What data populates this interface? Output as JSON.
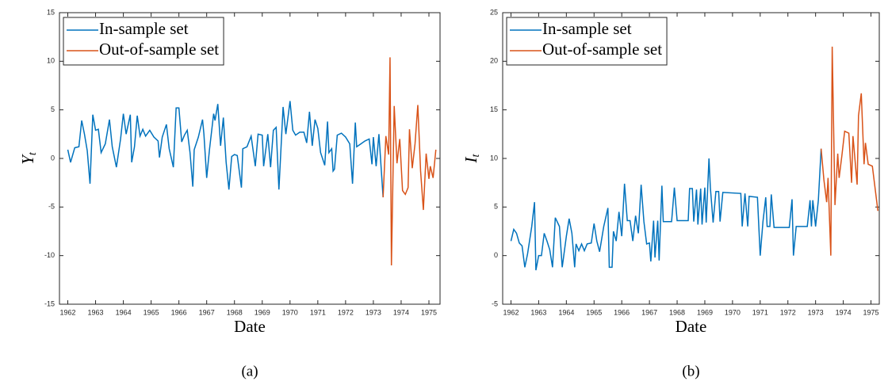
{
  "chart_data": [
    {
      "type": "line",
      "caption": "(a)",
      "x_label": "Date",
      "y_label": "Y",
      "y_label_subscript": "t",
      "xlim": [
        1961.7,
        1975.4
      ],
      "xticks": [
        1962,
        1963,
        1964,
        1965,
        1966,
        1967,
        1968,
        1969,
        1970,
        1971,
        1972,
        1973,
        1974,
        1975
      ],
      "ylim": [
        -15,
        15
      ],
      "yticks": [
        -15,
        -10,
        -5,
        0,
        5,
        10,
        15
      ],
      "legend": "upper left",
      "series": [
        {
          "name": "In-sample set",
          "color": "#0072bd",
          "x": [
            1962.0,
            1962.1,
            1962.25,
            1962.4,
            1962.5,
            1962.6,
            1962.7,
            1962.8,
            1962.9,
            1963.0,
            1963.1,
            1963.2,
            1963.35,
            1963.5,
            1963.6,
            1963.75,
            1963.9,
            1964.0,
            1964.1,
            1964.25,
            1964.3,
            1964.4,
            1964.5,
            1964.6,
            1964.7,
            1964.8,
            1964.95,
            1965.1,
            1965.25,
            1965.3,
            1965.4,
            1965.55,
            1965.65,
            1965.8,
            1965.9,
            1966.0,
            1966.1,
            1966.2,
            1966.3,
            1966.4,
            1966.5,
            1966.55,
            1966.7,
            1966.85,
            1966.9,
            1967.0,
            1967.1,
            1967.25,
            1967.3,
            1967.4,
            1967.5,
            1967.6,
            1967.7,
            1967.8,
            1967.9,
            1968.0,
            1968.1,
            1968.25,
            1968.3,
            1968.45,
            1968.6,
            1968.75,
            1968.85,
            1969.0,
            1969.05,
            1969.2,
            1969.3,
            1969.4,
            1969.5,
            1969.6,
            1969.75,
            1969.85,
            1970.0,
            1970.1,
            1970.2,
            1970.35,
            1970.5,
            1970.6,
            1970.7,
            1970.8,
            1970.9,
            1971.0,
            1971.1,
            1971.25,
            1971.35,
            1971.4,
            1971.5,
            1971.55,
            1971.6,
            1971.7,
            1971.85,
            1972.0,
            1972.15,
            1972.25,
            1972.35,
            1972.4,
            1972.55,
            1972.7,
            1972.85,
            1972.95,
            1973.0,
            1973.1,
            1973.2,
            1973.35
          ],
          "values": [
            0.9,
            -0.4,
            1.1,
            1.2,
            3.9,
            2.5,
            0.8,
            -2.6,
            4.5,
            2.9,
            3.0,
            0.6,
            1.5,
            4.0,
            1.2,
            -0.9,
            2.0,
            4.6,
            2.5,
            4.5,
            -0.4,
            1.2,
            4.4,
            2.3,
            3.0,
            2.3,
            2.9,
            2.2,
            1.8,
            0.1,
            2.2,
            3.5,
            1.0,
            -0.9,
            5.2,
            5.2,
            1.7,
            2.4,
            2.9,
            0.6,
            -2.9,
            0.9,
            2.2,
            4.0,
            2.5,
            -2.0,
            0.9,
            4.6,
            3.9,
            5.6,
            1.3,
            4.2,
            -0.4,
            -3.2,
            0.2,
            0.4,
            0.3,
            -3.0,
            1.0,
            1.2,
            2.3,
            -0.8,
            2.5,
            2.4,
            -0.8,
            2.5,
            -0.9,
            2.9,
            3.2,
            -3.2,
            5.3,
            2.5,
            5.9,
            2.9,
            2.4,
            2.7,
            2.7,
            1.6,
            4.8,
            1.3,
            4.0,
            3.1,
            0.6,
            -0.7,
            3.8,
            0.6,
            1.0,
            -1.3,
            -1.1,
            2.4,
            2.6,
            2.2,
            1.5,
            -2.6,
            3.7,
            1.2,
            1.5,
            1.8,
            2.0,
            -0.6,
            2.2,
            -0.8,
            2.5,
            -4.0
          ]
        },
        {
          "name": "Out-of-sample set",
          "color": "#d95319",
          "x": [
            1973.35,
            1973.45,
            1973.55,
            1973.6,
            1973.65,
            1973.75,
            1973.85,
            1973.95,
            1974.05,
            1974.15,
            1974.25,
            1974.3,
            1974.4,
            1974.5,
            1974.6,
            1974.7,
            1974.8,
            1974.9,
            1975.0,
            1975.05,
            1975.15,
            1975.25
          ],
          "values": [
            -4.0,
            2.3,
            0.4,
            10.4,
            -11.0,
            5.4,
            -0.5,
            2.0,
            -3.3,
            -3.7,
            -3.0,
            3.0,
            -1.0,
            1.5,
            5.5,
            -1.3,
            -5.3,
            0.5,
            -2.1,
            -0.8,
            -2.0,
            0.9
          ]
        }
      ]
    },
    {
      "type": "line",
      "caption": "(b)",
      "x_label": "Date",
      "y_label": "I",
      "y_label_subscript": "t",
      "xlim": [
        1961.7,
        1975.3
      ],
      "xticks": [
        1962,
        1963,
        1964,
        1965,
        1966,
        1967,
        1968,
        1969,
        1970,
        1971,
        1972,
        1973,
        1974,
        1975
      ],
      "ylim": [
        -5,
        25
      ],
      "yticks": [
        -5,
        0,
        5,
        10,
        15,
        20,
        25
      ],
      "legend": "upper left",
      "series": [
        {
          "name": "In-sample set",
          "color": "#0072bd",
          "x": [
            1962.0,
            1962.1,
            1962.2,
            1962.3,
            1962.4,
            1962.5,
            1962.6,
            1962.75,
            1962.85,
            1962.9,
            1963.0,
            1963.1,
            1963.2,
            1963.3,
            1963.4,
            1963.5,
            1963.6,
            1963.75,
            1963.85,
            1964.0,
            1964.1,
            1964.2,
            1964.3,
            1964.35,
            1964.45,
            1964.55,
            1964.65,
            1964.75,
            1964.9,
            1965.0,
            1965.1,
            1965.2,
            1965.35,
            1965.5,
            1965.55,
            1965.65,
            1965.7,
            1965.8,
            1965.9,
            1966.0,
            1966.1,
            1966.2,
            1966.3,
            1966.4,
            1966.5,
            1966.6,
            1966.7,
            1966.8,
            1966.9,
            1967.0,
            1967.05,
            1967.15,
            1967.2,
            1967.3,
            1967.35,
            1967.45,
            1967.5,
            1967.8,
            1967.9,
            1968.0,
            1968.4,
            1968.45,
            1968.55,
            1968.6,
            1968.7,
            1968.75,
            1968.85,
            1968.9,
            1969.0,
            1969.05,
            1969.15,
            1969.2,
            1969.3,
            1969.4,
            1969.5,
            1969.55,
            1969.65,
            1970.3,
            1970.35,
            1970.45,
            1970.55,
            1970.6,
            1970.9,
            1971.0,
            1971.1,
            1971.2,
            1971.25,
            1971.35,
            1971.4,
            1971.5,
            1972.05,
            1972.15,
            1972.2,
            1972.3,
            1972.7,
            1972.8,
            1972.85,
            1972.9,
            1973.0,
            1973.1,
            1973.2
          ],
          "values": [
            1.5,
            2.7,
            2.3,
            1.3,
            1.0,
            -1.2,
            0.2,
            3.0,
            5.5,
            -1.5,
            0.0,
            0.0,
            2.3,
            1.5,
            0.6,
            -1.2,
            3.9,
            3.0,
            -1.2,
            2.0,
            3.8,
            2.3,
            -1.2,
            1.2,
            0.5,
            1.2,
            0.5,
            1.2,
            1.3,
            3.3,
            1.5,
            0.4,
            3.0,
            4.9,
            -1.2,
            -1.2,
            2.5,
            1.5,
            4.5,
            2.0,
            7.4,
            3.6,
            3.6,
            1.5,
            4.1,
            2.3,
            7.3,
            3.5,
            1.2,
            1.3,
            -0.6,
            3.6,
            -0.2,
            3.6,
            -0.5,
            7.2,
            3.5,
            3.5,
            7.0,
            3.6,
            3.6,
            6.9,
            6.9,
            3.5,
            6.8,
            3.2,
            6.9,
            3.2,
            7.0,
            3.4,
            10.0,
            7.0,
            3.4,
            6.6,
            6.6,
            3.5,
            6.5,
            6.4,
            3.0,
            6.4,
            3.0,
            6.1,
            6.0,
            0.0,
            3.5,
            6.0,
            3.0,
            3.0,
            6.3,
            2.9,
            2.9,
            5.8,
            0.0,
            3.0,
            3.0,
            5.7,
            3.0,
            5.7,
            3.0,
            5.7,
            11.0
          ]
        },
        {
          "name": "Out-of-sample set",
          "color": "#d95319",
          "x": [
            1973.2,
            1973.3,
            1973.4,
            1973.45,
            1973.55,
            1973.6,
            1973.7,
            1973.8,
            1973.85,
            1973.95,
            1974.05,
            1974.2,
            1974.3,
            1974.35,
            1974.5,
            1974.55,
            1974.65,
            1974.75,
            1974.8,
            1974.9,
            1975.05,
            1975.25
          ],
          "values": [
            11.0,
            7.8,
            5.5,
            8.0,
            0.0,
            21.5,
            5.2,
            10.5,
            8.0,
            10.3,
            12.8,
            12.6,
            7.5,
            12.3,
            7.3,
            14.4,
            16.7,
            9.4,
            11.6,
            9.4,
            9.2,
            4.6
          ]
        }
      ]
    }
  ]
}
